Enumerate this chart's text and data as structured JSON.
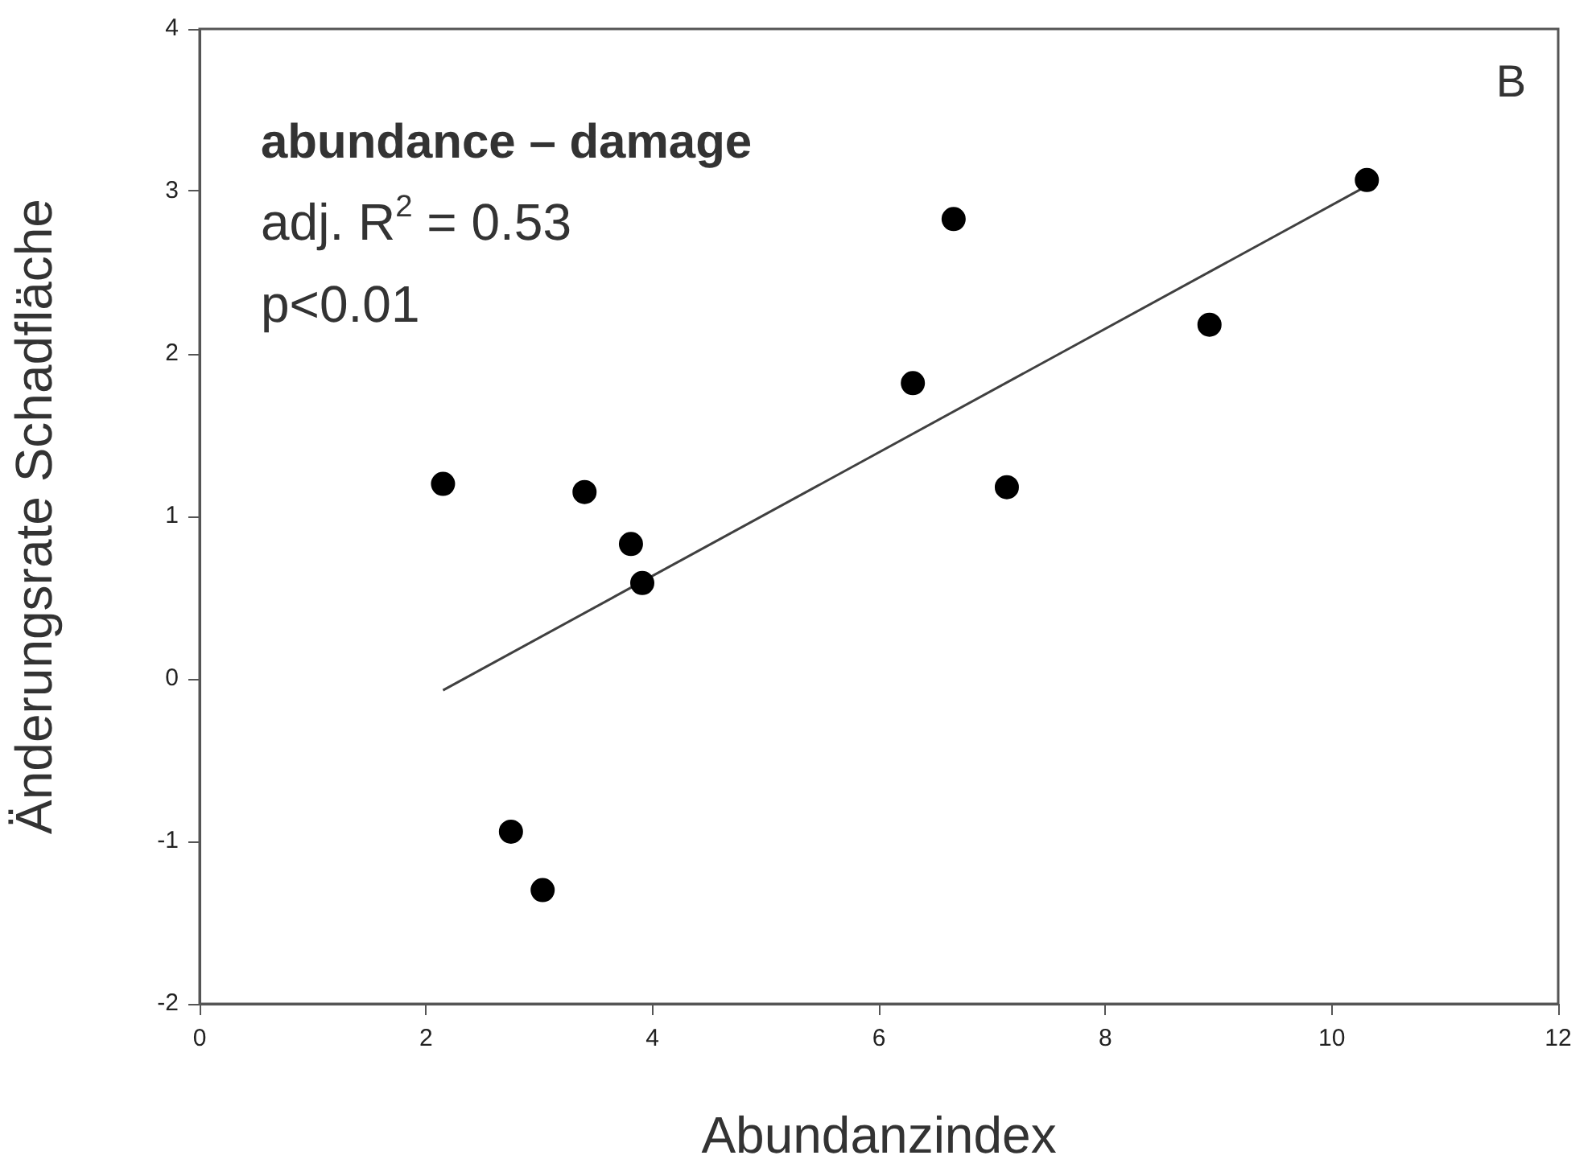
{
  "chart_data": {
    "type": "scatter",
    "xlabel": "Abundanzindex",
    "ylabel": "Änderungsrate Schadfläche",
    "annotations": [
      "B",
      "abundance – damage",
      "adj. R$^{2}$ = 0.53",
      "p<0.01"
    ],
    "xlim": [
      0,
      12
    ],
    "xticks": [
      0,
      2,
      4,
      6,
      8,
      10,
      12
    ],
    "ylim": [
      -2,
      4
    ],
    "yticks": [
      -2,
      -1,
      0,
      1,
      2,
      3,
      4
    ],
    "grid": false,
    "legend": false,
    "marker": "circle",
    "series": [
      {
        "type": "scatter",
        "color": "#000000",
        "x": [
          2.15,
          3.4,
          3.81,
          3.91,
          2.75,
          3.03,
          6.3,
          6.66,
          7.13,
          8.92,
          10.31
        ],
        "values": [
          1.2,
          1.15,
          0.83,
          0.59,
          -0.94,
          -1.3,
          1.82,
          2.83,
          1.18,
          2.18,
          3.07
        ]
      },
      {
        "type": "line",
        "color": "#404040",
        "x": [
          2.15,
          10.3
        ],
        "values": [
          -0.07,
          3.03
        ],
        "marker": "none",
        "line_style": "solid"
      }
    ]
  }
}
